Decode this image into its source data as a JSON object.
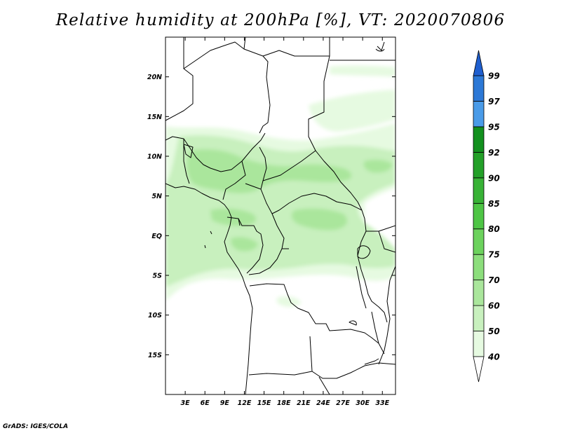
{
  "title": "Relative humidity at 200hPa [%], VT: 2020070806",
  "credit": "GrADS: IGES/COLA",
  "map": {
    "lon_range": [
      0,
      35
    ],
    "lat_range": [
      -20,
      25
    ],
    "lat_ticks": [
      {
        "value": 20,
        "label": "20N"
      },
      {
        "value": 15,
        "label": "15N"
      },
      {
        "value": 10,
        "label": "10N"
      },
      {
        "value": 5,
        "label": "5N"
      },
      {
        "value": 0,
        "label": "EQ"
      },
      {
        "value": -5,
        "label": "5S"
      },
      {
        "value": -10,
        "label": "10S"
      },
      {
        "value": -15,
        "label": "15S"
      }
    ],
    "lon_ticks": [
      {
        "value": 3,
        "label": "3E"
      },
      {
        "value": 6,
        "label": "6E"
      },
      {
        "value": 9,
        "label": "9E"
      },
      {
        "value": 12,
        "label": "12E"
      },
      {
        "value": 15,
        "label": "15E"
      },
      {
        "value": 18,
        "label": "18E"
      },
      {
        "value": 21,
        "label": "21E"
      },
      {
        "value": 24,
        "label": "24E"
      },
      {
        "value": 27,
        "label": "27E"
      },
      {
        "value": 30,
        "label": "30E"
      },
      {
        "value": 33,
        "label": "33E"
      }
    ]
  },
  "legend": {
    "levels": [
      {
        "label": "40",
        "color": "#ffffff"
      },
      {
        "label": "50",
        "color": "#e6fae1"
      },
      {
        "label": "60",
        "color": "#c8f0be"
      },
      {
        "label": "70",
        "color": "#aae69c"
      },
      {
        "label": "75",
        "color": "#8cde7c"
      },
      {
        "label": "80",
        "color": "#6cd25d"
      },
      {
        "label": "85",
        "color": "#4ec545"
      },
      {
        "label": "90",
        "color": "#38b236"
      },
      {
        "label": "92",
        "color": "#23a028"
      },
      {
        "label": "95",
        "color": "#12901e"
      },
      {
        "label": "97",
        "color": "#4a9be8"
      },
      {
        "label": "99",
        "color": "#2c78d6"
      }
    ],
    "top_color": "#1f5fcf",
    "bottom_color": "#ffffff"
  },
  "humidity_bands": [
    {
      "level": "50",
      "color": "#e6fae1"
    },
    {
      "level": "60",
      "color": "#c8f0be"
    },
    {
      "level": "70",
      "color": "#aae69c"
    }
  ]
}
